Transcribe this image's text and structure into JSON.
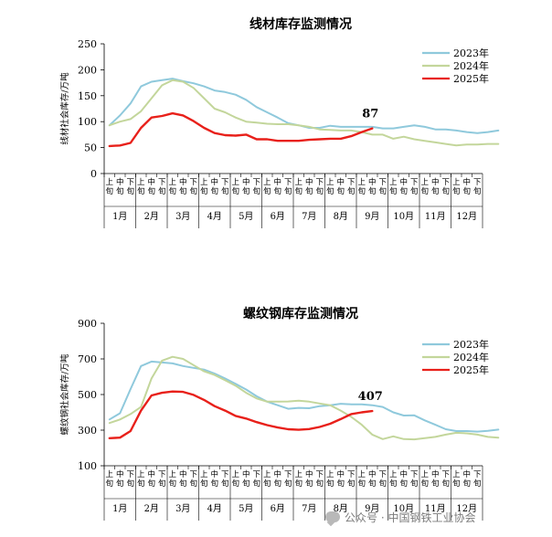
{
  "chart_data": [
    {
      "type": "line",
      "title": "线材库存监测情况",
      "ylabel": "线材社会库存/万吨",
      "ylim": [
        0,
        250
      ],
      "yticks": [
        0,
        50,
        100,
        150,
        200,
        250
      ],
      "sub_ticks": [
        "上旬",
        "中旬",
        "下旬"
      ],
      "months": [
        "1月",
        "2月",
        "3月",
        "4月",
        "5月",
        "6月",
        "7月",
        "8月",
        "9月",
        "10月",
        "11月",
        "12月"
      ],
      "grid": false,
      "legend": "top-right",
      "annotation": {
        "text": "87",
        "series": "2025年",
        "index": 25
      },
      "series": [
        {
          "name": "2023年",
          "color": "#8fc9dc",
          "values": [
            93,
            112,
            135,
            168,
            177,
            180,
            183,
            178,
            174,
            168,
            160,
            157,
            152,
            142,
            128,
            118,
            108,
            97,
            93,
            88,
            88,
            92,
            90,
            90,
            90,
            90,
            87,
            87,
            90,
            93,
            90,
            85,
            85,
            83,
            80,
            78,
            80,
            83
          ]
        },
        {
          "name": "2024年",
          "color": "#c3d69b",
          "values": [
            93,
            100,
            105,
            120,
            145,
            170,
            180,
            177,
            165,
            145,
            125,
            118,
            108,
            100,
            98,
            96,
            95,
            95,
            93,
            90,
            85,
            84,
            83,
            83,
            80,
            75,
            75,
            67,
            71,
            66,
            63,
            60,
            57,
            54,
            56,
            56,
            57,
            57
          ]
        },
        {
          "name": "2025年",
          "color": "#e8201a",
          "values": [
            53,
            54,
            59,
            88,
            108,
            111,
            116,
            112,
            101,
            88,
            78,
            74,
            73,
            75,
            66,
            66,
            63,
            63,
            63,
            65,
            66,
            67,
            67,
            72,
            80,
            87
          ]
        }
      ]
    },
    {
      "type": "line",
      "title": "螺纹钢库存监测情况",
      "ylabel": "螺纹钢社会库存/万吨",
      "ylim": [
        100,
        900
      ],
      "yticks": [
        100,
        300,
        500,
        700,
        900
      ],
      "sub_ticks": [
        "上旬",
        "中旬",
        "下旬"
      ],
      "months": [
        "1月",
        "2月",
        "3月",
        "4月",
        "5月",
        "6月",
        "7月",
        "8月",
        "9月",
        "10月",
        "11月",
        "12月"
      ],
      "grid": false,
      "legend": "top-right",
      "annotation": {
        "text": "407",
        "series": "2025年",
        "index": 25
      },
      "series": [
        {
          "name": "2023年",
          "color": "#8fc9dc",
          "values": [
            360,
            395,
            530,
            660,
            685,
            680,
            675,
            660,
            650,
            640,
            618,
            590,
            560,
            528,
            490,
            460,
            440,
            420,
            425,
            423,
            435,
            440,
            448,
            445,
            445,
            440,
            430,
            400,
            382,
            383,
            355,
            330,
            305,
            295,
            295,
            292,
            296,
            303
          ]
        },
        {
          "name": "2024年",
          "color": "#c3d69b",
          "values": [
            340,
            360,
            390,
            430,
            590,
            690,
            712,
            700,
            665,
            630,
            610,
            580,
            550,
            510,
            478,
            460,
            460,
            461,
            465,
            460,
            450,
            440,
            410,
            375,
            330,
            275,
            250,
            265,
            250,
            248,
            255,
            262,
            275,
            285,
            282,
            275,
            262,
            258
          ]
        },
        {
          "name": "2025年",
          "color": "#e8201a",
          "values": [
            255,
            258,
            295,
            410,
            495,
            510,
            517,
            515,
            498,
            470,
            435,
            410,
            380,
            365,
            345,
            328,
            315,
            305,
            302,
            306,
            318,
            336,
            362,
            390,
            400,
            407
          ]
        }
      ]
    }
  ],
  "watermark": {
    "text": "公众号 · 中国钢铁工业协会"
  }
}
